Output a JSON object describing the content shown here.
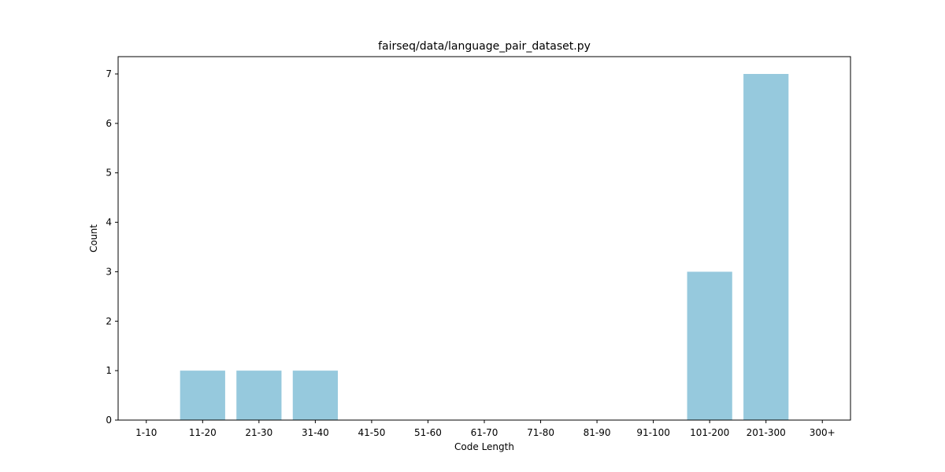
{
  "chart_data": {
    "type": "bar",
    "title": "fairseq/data/language_pair_dataset.py",
    "xlabel": "Code Length",
    "ylabel": "Count",
    "categories": [
      "1-10",
      "11-20",
      "21-30",
      "31-40",
      "41-50",
      "51-60",
      "61-70",
      "71-80",
      "81-90",
      "91-100",
      "101-200",
      "201-300",
      "300+"
    ],
    "values": [
      0,
      1,
      1,
      1,
      0,
      0,
      0,
      0,
      0,
      0,
      3,
      7,
      0
    ],
    "ylim": [
      0,
      7.35
    ],
    "yticks": [
      0,
      1,
      2,
      3,
      4,
      5,
      6,
      7
    ],
    "bar_color": "#96c9dd",
    "grid": false,
    "legend": "none"
  }
}
